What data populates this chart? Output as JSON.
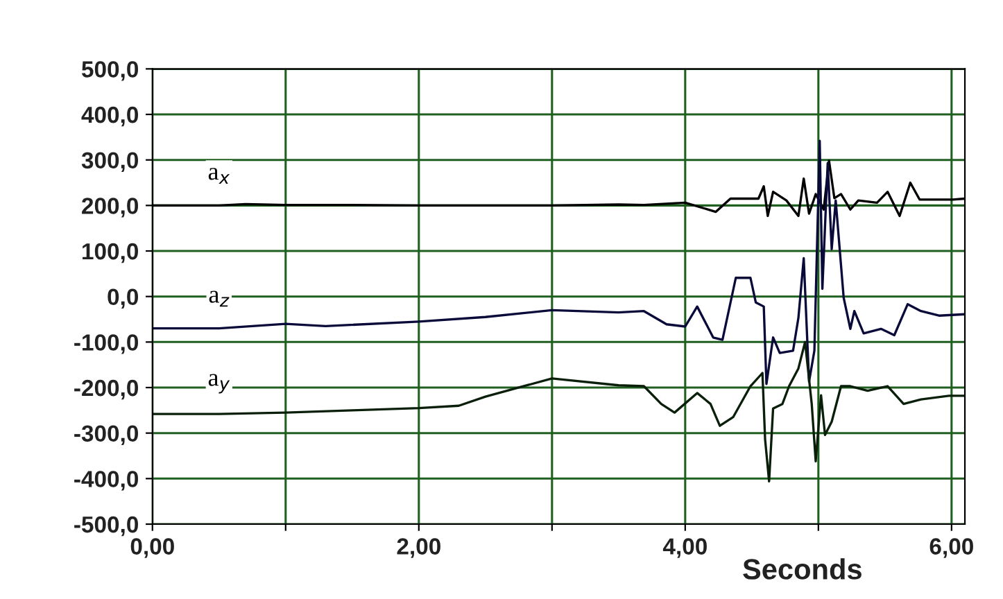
{
  "chart_data": {
    "type": "line",
    "xlabel": "Seconds",
    "xlim": [
      0,
      6.1
    ],
    "ylim": [
      -500,
      500
    ],
    "xticks": [
      {
        "value": 0,
        "label": "0,00"
      },
      {
        "value": 1,
        "label": null
      },
      {
        "value": 2,
        "label": "2,00"
      },
      {
        "value": 3,
        "label": null
      },
      {
        "value": 4,
        "label": "4,00"
      },
      {
        "value": 5,
        "label": null
      },
      {
        "value": 6,
        "label": "6,00"
      }
    ],
    "yticks": [
      {
        "value": 500,
        "label": "500,0"
      },
      {
        "value": 400,
        "label": "400,0"
      },
      {
        "value": 300,
        "label": "300,0"
      },
      {
        "value": 200,
        "label": "200,0"
      },
      {
        "value": 100,
        "label": "100,0"
      },
      {
        "value": 0,
        "label": "0,0"
      },
      {
        "value": -100,
        "label": "-100,0"
      },
      {
        "value": -200,
        "label": "-200,0"
      },
      {
        "value": -300,
        "label": "-300,0"
      },
      {
        "value": -400,
        "label": "-400,0"
      },
      {
        "value": -500,
        "label": "-500,0"
      }
    ],
    "grid": true,
    "legend": false,
    "marker": "none",
    "line_style": "solid",
    "series": [
      {
        "name": "a$_{x}$",
        "color": "#000000",
        "x": [
          0,
          0.5,
          0.7,
          1,
          1.5,
          2,
          2.5,
          3,
          3.5,
          3.69,
          4.0,
          4.23,
          4.34,
          4.55,
          4.59,
          4.62,
          4.66,
          4.76,
          4.85,
          4.89,
          4.93,
          4.98,
          5.04,
          5.08,
          5.12,
          5.17,
          5.24,
          5.3,
          5.44,
          5.52,
          5.61,
          5.69,
          5.76,
          6.01,
          6.1
        ],
        "values": [
          200,
          200,
          203,
          201,
          201,
          200,
          200,
          200,
          202,
          201,
          206,
          186,
          215,
          215,
          242,
          177,
          230,
          211,
          177,
          259,
          182,
          225,
          191,
          298,
          216,
          225,
          191,
          211,
          206,
          230,
          177,
          250,
          213,
          213,
          215
        ]
      },
      {
        "name": "a$_{z}$",
        "color": "#0a0a3a",
        "x": [
          0,
          0.5,
          1.0,
          1.3,
          2,
          2.5,
          3,
          3.5,
          3.69,
          3.86,
          4.0,
          4.09,
          4.21,
          4.28,
          4.38,
          4.49,
          4.53,
          4.59,
          4.61,
          4.66,
          4.71,
          4.81,
          4.85,
          4.89,
          4.93,
          4.97,
          5.01,
          5.03,
          5.07,
          5.1,
          5.13,
          5.19,
          5.24,
          5.27,
          5.34,
          5.47,
          5.57,
          5.67,
          5.77,
          5.91,
          6.1
        ],
        "values": [
          -70,
          -70,
          -60,
          -65,
          -55,
          -45,
          -30,
          -35,
          -32,
          -61,
          -66,
          -22,
          -90,
          -95,
          41,
          41,
          -13,
          -22,
          -192,
          -90,
          -124,
          -119,
          -47,
          84,
          -187,
          -119,
          342,
          17,
          293,
          104,
          211,
          -3,
          -71,
          -32,
          -81,
          -71,
          -85,
          -17,
          -32,
          -42,
          -39
        ]
      },
      {
        "name": "a$_{y}$",
        "color": "#0a1f0a",
        "x": [
          0,
          0.5,
          1,
          1.5,
          2,
          2.3,
          2.5,
          3.0,
          3.5,
          3.69,
          3.82,
          3.92,
          4.09,
          4.19,
          4.26,
          4.36,
          4.49,
          4.58,
          4.6,
          4.63,
          4.66,
          4.73,
          4.78,
          4.85,
          4.9,
          4.95,
          4.98,
          5.02,
          5.05,
          5.1,
          5.17,
          5.24,
          5.37,
          5.52,
          5.64,
          5.77,
          5.98,
          6.1
        ],
        "values": [
          -258,
          -258,
          -255,
          -250,
          -245,
          -240,
          -220,
          -180,
          -195,
          -197,
          -236,
          -255,
          -212,
          -236,
          -284,
          -265,
          -197,
          -168,
          -314,
          -406,
          -246,
          -236,
          -197,
          -158,
          -100,
          -236,
          -362,
          -217,
          -304,
          -275,
          -197,
          -197,
          -207,
          -197,
          -236,
          -226,
          -218,
          -218
        ]
      }
    ]
  }
}
